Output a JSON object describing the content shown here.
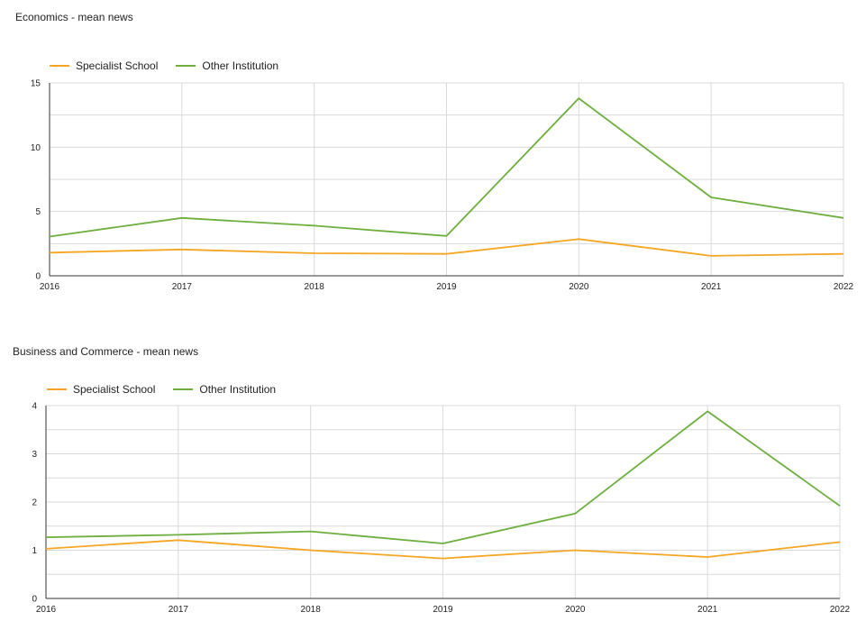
{
  "colors": {
    "specialist": "#F5A623",
    "other": "#6DAE3E",
    "grid": "#D9D9D9",
    "axis": "#333333"
  },
  "chart_data": [
    {
      "type": "line",
      "title": "Economics - mean news",
      "categories": [
        "2016",
        "2017",
        "2018",
        "2019",
        "2020",
        "2021",
        "2022"
      ],
      "series": [
        {
          "name": "Specialist School",
          "color": "#F5A623",
          "values": [
            1.8,
            2.05,
            1.75,
            1.7,
            2.85,
            1.55,
            1.7
          ]
        },
        {
          "name": "Other Institution",
          "color": "#6DAE3E",
          "values": [
            3.05,
            4.5,
            3.9,
            3.1,
            13.8,
            6.1,
            4.5
          ]
        }
      ],
      "yticks": [
        0,
        5,
        10,
        15
      ],
      "ylim": [
        0,
        15
      ],
      "grid": true,
      "legend_position": "top-left"
    },
    {
      "type": "line",
      "title": "Business and Commerce - mean news",
      "categories": [
        "2016",
        "2017",
        "2018",
        "2019",
        "2020",
        "2021",
        "2022"
      ],
      "series": [
        {
          "name": "Specialist School",
          "color": "#F5A623",
          "values": [
            1.03,
            1.21,
            1.0,
            0.83,
            1.0,
            0.86,
            1.17
          ]
        },
        {
          "name": "Other Institution",
          "color": "#6DAE3E",
          "values": [
            1.27,
            1.32,
            1.39,
            1.14,
            1.76,
            3.88,
            1.92
          ]
        }
      ],
      "yticks": [
        0,
        1,
        2,
        3,
        4
      ],
      "ylim": [
        0,
        4
      ],
      "grid": true,
      "legend_position": "top-left"
    }
  ]
}
